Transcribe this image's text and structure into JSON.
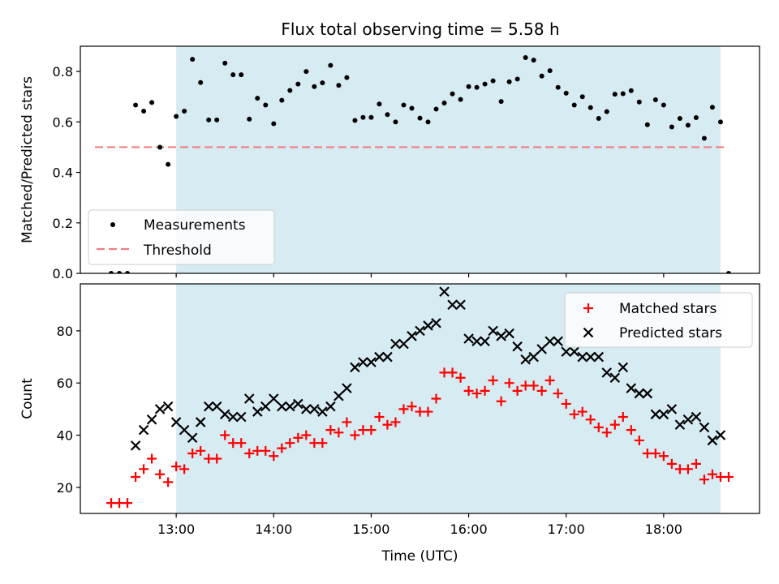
{
  "chart_data": [
    {
      "type": "scatter",
      "title": "Flux total observing time = 5.58 h",
      "xlabel": "",
      "ylabel": "Matched/Predicted stars",
      "xlim": [
        "12:01",
        "18:59"
      ],
      "ylim": [
        0,
        0.9
      ],
      "yticks": [
        0.0,
        0.2,
        0.4,
        0.6,
        0.8
      ],
      "ytick_labels": [
        "0.0",
        "0.2",
        "0.4",
        "0.6",
        "0.8"
      ],
      "shaded_region": {
        "x_start": "13:00",
        "x_end": "18:35",
        "color": "#add8e6"
      },
      "threshold": {
        "name": "Threshold",
        "value": 0.5,
        "x_start": "12:10",
        "x_end": "18:38",
        "color": "#f08080",
        "style": "dashed"
      },
      "legend": {
        "placement": "lower-left",
        "entries": [
          "Measurements",
          "Threshold"
        ]
      },
      "series": [
        {
          "name": "Measurements",
          "marker": "dot",
          "color": "#000000",
          "points": [
            [
              "12:20",
              0
            ],
            [
              "12:25",
              0
            ],
            [
              "12:30",
              0
            ],
            [
              "12:35",
              0.667
            ],
            [
              "12:40",
              0.643
            ],
            [
              "12:45",
              0.677
            ],
            [
              "12:50",
              0.5
            ],
            [
              "12:55",
              0.432
            ],
            [
              "13:00",
              0.622
            ],
            [
              "13:05",
              0.643
            ],
            [
              "13:10",
              0.848
            ],
            [
              "13:15",
              0.756
            ],
            [
              "13:20",
              0.608
            ],
            [
              "13:25",
              0.608
            ],
            [
              "13:30",
              0.833
            ],
            [
              "13:35",
              0.787
            ],
            [
              "13:40",
              0.787
            ],
            [
              "13:45",
              0.611
            ],
            [
              "13:50",
              0.694
            ],
            [
              "13:55",
              0.667
            ],
            [
              "14:00",
              0.593
            ],
            [
              "14:05",
              0.686
            ],
            [
              "14:10",
              0.725
            ],
            [
              "14:15",
              0.75
            ],
            [
              "14:20",
              0.8
            ],
            [
              "14:25",
              0.74
            ],
            [
              "14:30",
              0.755
            ],
            [
              "14:35",
              0.824
            ],
            [
              "14:40",
              0.745
            ],
            [
              "14:45",
              0.776
            ],
            [
              "14:50",
              0.606
            ],
            [
              "14:55",
              0.618
            ],
            [
              "15:00",
              0.618
            ],
            [
              "15:05",
              0.671
            ],
            [
              "15:10",
              0.629
            ],
            [
              "15:15",
              0.6
            ],
            [
              "15:20",
              0.667
            ],
            [
              "15:25",
              0.654
            ],
            [
              "15:30",
              0.615
            ],
            [
              "15:35",
              0.6
            ],
            [
              "15:40",
              0.651
            ],
            [
              "15:45",
              0.675
            ],
            [
              "15:50",
              0.711
            ],
            [
              "15:55",
              0.689
            ],
            [
              "16:00",
              0.74
            ],
            [
              "16:05",
              0.737
            ],
            [
              "16:10",
              0.75
            ],
            [
              "16:15",
              0.763
            ],
            [
              "16:20",
              0.681
            ],
            [
              "16:25",
              0.759
            ],
            [
              "16:30",
              0.77
            ],
            [
              "16:35",
              0.855
            ],
            [
              "16:40",
              0.845
            ],
            [
              "16:45",
              0.782
            ],
            [
              "16:50",
              0.803
            ],
            [
              "16:55",
              0.737
            ],
            [
              "17:00",
              0.714
            ],
            [
              "17:05",
              0.667
            ],
            [
              "17:10",
              0.7
            ],
            [
              "17:15",
              0.657
            ],
            [
              "17:20",
              0.614
            ],
            [
              "17:25",
              0.641
            ],
            [
              "17:30",
              0.71
            ],
            [
              "17:35",
              0.712
            ],
            [
              "17:40",
              0.724
            ],
            [
              "17:45",
              0.679
            ],
            [
              "17:50",
              0.589
            ],
            [
              "17:55",
              0.688
            ],
            [
              "18:00",
              0.667
            ],
            [
              "18:05",
              0.58
            ],
            [
              "18:10",
              0.614
            ],
            [
              "18:15",
              0.587
            ],
            [
              "18:20",
              0.617
            ],
            [
              "18:25",
              0.535
            ],
            [
              "18:30",
              0.658
            ],
            [
              "18:35",
              0.6
            ],
            [
              "18:40",
              0
            ]
          ]
        }
      ]
    },
    {
      "type": "scatter",
      "xlabel": "Time (UTC)",
      "ylabel": "Count",
      "xlim": [
        "12:01",
        "18:59"
      ],
      "ylim": [
        10,
        98
      ],
      "xticks": [
        "13:00",
        "14:00",
        "15:00",
        "16:00",
        "17:00",
        "18:00"
      ],
      "xtick_labels": [
        "13:00",
        "14:00",
        "15:00",
        "16:00",
        "17:00",
        "18:00"
      ],
      "yticks": [
        20,
        40,
        60,
        80
      ],
      "ytick_labels": [
        "20",
        "40",
        "60",
        "80"
      ],
      "shaded_region": {
        "x_start": "13:00",
        "x_end": "18:35",
        "color": "#add8e6"
      },
      "legend": {
        "placement": "top-right",
        "entries": [
          "Matched stars",
          "Predicted stars"
        ]
      },
      "series": [
        {
          "name": "Matched stars",
          "marker": "plus",
          "color": "#ff0000",
          "points": [
            [
              "12:20",
              14
            ],
            [
              "12:25",
              14
            ],
            [
              "12:30",
              14
            ],
            [
              "12:35",
              24
            ],
            [
              "12:40",
              27
            ],
            [
              "12:45",
              31
            ],
            [
              "12:50",
              25
            ],
            [
              "12:55",
              22
            ],
            [
              "13:00",
              28
            ],
            [
              "13:05",
              27
            ],
            [
              "13:10",
              33
            ],
            [
              "13:15",
              34
            ],
            [
              "13:20",
              31
            ],
            [
              "13:25",
              31
            ],
            [
              "13:30",
              40
            ],
            [
              "13:35",
              37
            ],
            [
              "13:40",
              37
            ],
            [
              "13:45",
              33
            ],
            [
              "13:50",
              34
            ],
            [
              "13:55",
              34
            ],
            [
              "14:00",
              32
            ],
            [
              "14:05",
              35
            ],
            [
              "14:10",
              37
            ],
            [
              "14:15",
              39
            ],
            [
              "14:20",
              40
            ],
            [
              "14:25",
              37
            ],
            [
              "14:30",
              37
            ],
            [
              "14:35",
              42
            ],
            [
              "14:40",
              41
            ],
            [
              "14:45",
              45
            ],
            [
              "14:50",
              40
            ],
            [
              "14:55",
              42
            ],
            [
              "15:00",
              42
            ],
            [
              "15:05",
              47
            ],
            [
              "15:10",
              44
            ],
            [
              "15:15",
              45
            ],
            [
              "15:20",
              50
            ],
            [
              "15:25",
              51
            ],
            [
              "15:30",
              49
            ],
            [
              "15:35",
              49
            ],
            [
              "15:40",
              54
            ],
            [
              "15:45",
              64
            ],
            [
              "15:50",
              64
            ],
            [
              "15:55",
              62
            ],
            [
              "16:00",
              57
            ],
            [
              "16:05",
              56
            ],
            [
              "16:10",
              57
            ],
            [
              "16:15",
              61
            ],
            [
              "16:20",
              53
            ],
            [
              "16:25",
              60
            ],
            [
              "16:30",
              57
            ],
            [
              "16:35",
              59
            ],
            [
              "16:40",
              59
            ],
            [
              "16:45",
              57
            ],
            [
              "16:50",
              61
            ],
            [
              "16:55",
              56
            ],
            [
              "17:00",
              52
            ],
            [
              "17:05",
              48
            ],
            [
              "17:10",
              49
            ],
            [
              "17:15",
              46
            ],
            [
              "17:20",
              43
            ],
            [
              "17:25",
              41
            ],
            [
              "17:30",
              44
            ],
            [
              "17:35",
              47
            ],
            [
              "17:40",
              42
            ],
            [
              "17:45",
              38
            ],
            [
              "17:50",
              33
            ],
            [
              "17:55",
              33
            ],
            [
              "18:00",
              32
            ],
            [
              "18:05",
              29
            ],
            [
              "18:10",
              27
            ],
            [
              "18:15",
              27
            ],
            [
              "18:20",
              29
            ],
            [
              "18:25",
              23
            ],
            [
              "18:30",
              25
            ],
            [
              "18:35",
              24
            ],
            [
              "18:40",
              24
            ]
          ]
        },
        {
          "name": "Predicted stars",
          "marker": "x",
          "color": "#000000",
          "points": [
            [
              "12:35",
              36
            ],
            [
              "12:40",
              42
            ],
            [
              "12:45",
              46
            ],
            [
              "12:50",
              50
            ],
            [
              "12:55",
              51
            ],
            [
              "13:00",
              45
            ],
            [
              "13:05",
              42
            ],
            [
              "13:10",
              39
            ],
            [
              "13:15",
              45
            ],
            [
              "13:20",
              51
            ],
            [
              "13:25",
              51
            ],
            [
              "13:30",
              48
            ],
            [
              "13:35",
              47
            ],
            [
              "13:40",
              47
            ],
            [
              "13:45",
              54
            ],
            [
              "13:50",
              49
            ],
            [
              "13:55",
              51
            ],
            [
              "14:00",
              54
            ],
            [
              "14:05",
              51
            ],
            [
              "14:10",
              51
            ],
            [
              "14:15",
              52
            ],
            [
              "14:20",
              50
            ],
            [
              "14:25",
              50
            ],
            [
              "14:30",
              49
            ],
            [
              "14:35",
              51
            ],
            [
              "14:40",
              55
            ],
            [
              "14:45",
              58
            ],
            [
              "14:50",
              66
            ],
            [
              "14:55",
              68
            ],
            [
              "15:00",
              68
            ],
            [
              "15:05",
              70
            ],
            [
              "15:10",
              70
            ],
            [
              "15:15",
              75
            ],
            [
              "15:20",
              75
            ],
            [
              "15:25",
              78
            ],
            [
              "15:30",
              80
            ],
            [
              "15:35",
              82
            ],
            [
              "15:40",
              83
            ],
            [
              "15:45",
              95
            ],
            [
              "15:50",
              90
            ],
            [
              "15:55",
              90
            ],
            [
              "16:00",
              77
            ],
            [
              "16:05",
              76
            ],
            [
              "16:10",
              76
            ],
            [
              "16:15",
              80
            ],
            [
              "16:20",
              78
            ],
            [
              "16:25",
              79
            ],
            [
              "16:30",
              74
            ],
            [
              "16:35",
              69
            ],
            [
              "16:40",
              70
            ],
            [
              "16:45",
              73
            ],
            [
              "16:50",
              76
            ],
            [
              "16:55",
              76
            ],
            [
              "17:00",
              72
            ],
            [
              "17:05",
              72
            ],
            [
              "17:10",
              70
            ],
            [
              "17:15",
              70
            ],
            [
              "17:20",
              70
            ],
            [
              "17:25",
              64
            ],
            [
              "17:30",
              62
            ],
            [
              "17:35",
              66
            ],
            [
              "17:40",
              58
            ],
            [
              "17:45",
              56
            ],
            [
              "17:50",
              56
            ],
            [
              "17:55",
              48
            ],
            [
              "18:00",
              48
            ],
            [
              "18:05",
              50
            ],
            [
              "18:10",
              44
            ],
            [
              "18:15",
              46
            ],
            [
              "18:20",
              47
            ],
            [
              "18:25",
              43
            ],
            [
              "18:30",
              38
            ],
            [
              "18:35",
              40
            ]
          ]
        }
      ]
    }
  ]
}
